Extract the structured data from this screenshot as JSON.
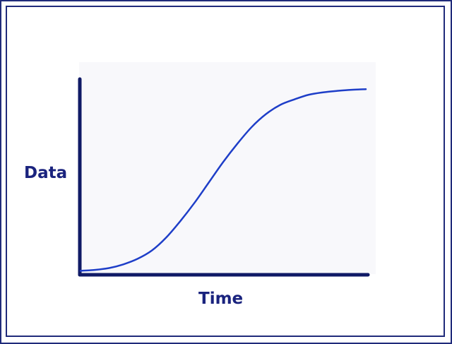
{
  "chart_data": {
    "type": "line",
    "title": "",
    "xlabel": "Time",
    "ylabel": "Data",
    "grid": false,
    "legend": "none",
    "xlim": [
      0,
      1
    ],
    "ylim": [
      0,
      1
    ],
    "series": [
      {
        "x": [
          0,
          0.05,
          0.1,
          0.15,
          0.2,
          0.25,
          0.3,
          0.35,
          0.4,
          0.45,
          0.5,
          0.55,
          0.6,
          0.65,
          0.7,
          0.75,
          0.8,
          0.85,
          0.9,
          0.95,
          1.0
        ],
        "y": [
          0.01,
          0.015,
          0.025,
          0.045,
          0.075,
          0.12,
          0.19,
          0.28,
          0.38,
          0.49,
          0.6,
          0.7,
          0.79,
          0.86,
          0.91,
          0.94,
          0.965,
          0.978,
          0.986,
          0.992,
          0.995
        ]
      }
    ],
    "colors": {
      "curve": "#1e3ec8",
      "axis": "#101a66",
      "label": "#1a237e",
      "frame": "#1f2a7a"
    }
  }
}
